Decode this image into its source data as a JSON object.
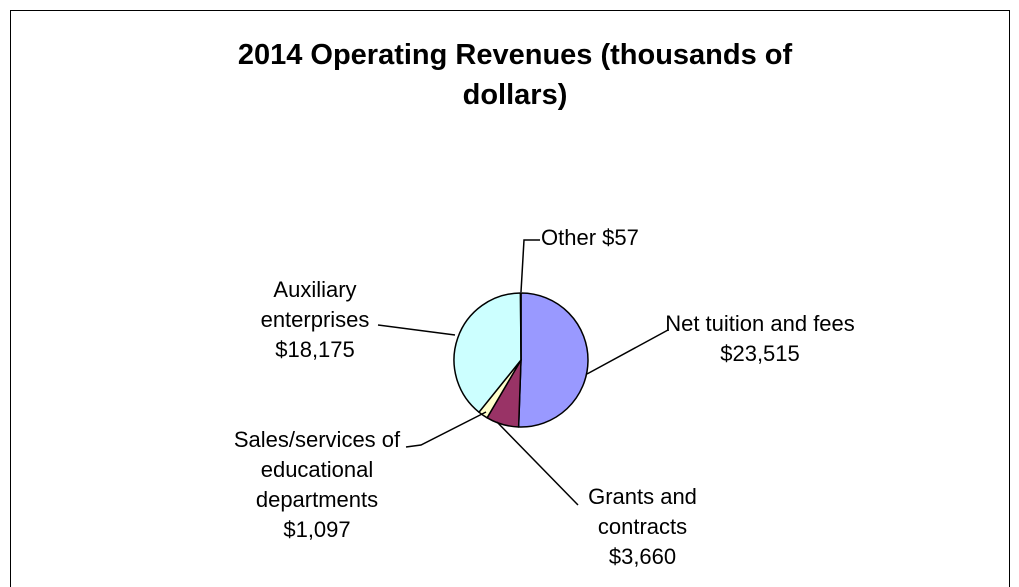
{
  "chart_data": {
    "type": "pie",
    "title": "2014 Operating Revenues (thousands of dollars)",
    "categories": [
      "Net tuition and fees",
      "Grants and contracts",
      "Sales/services of educational departments",
      "Auxiliary enterprises",
      "Other"
    ],
    "values": [
      23515,
      3660,
      1097,
      18175,
      57
    ],
    "value_labels": [
      "$23,515",
      "$3,660",
      "$1,097",
      "$18,175",
      "$57"
    ],
    "colors": [
      "#9999ff",
      "#993366",
      "#ffffcc",
      "#ccffff",
      "#ffffff"
    ]
  }
}
